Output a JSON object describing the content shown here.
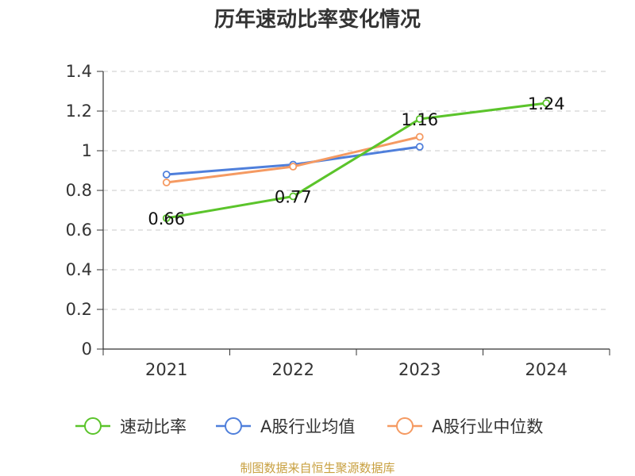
{
  "chart_data": {
    "type": "line",
    "title": "历年速动比率变化情况",
    "source": "制图数据来自恒生聚源数据库",
    "xlabel": "",
    "ylabel": "",
    "categories": [
      "2021",
      "2022",
      "2023",
      "2024"
    ],
    "yticks": [
      "0",
      "0.2",
      "0.4",
      "0.6",
      "0.8",
      "1",
      "1.2",
      "1.4"
    ],
    "ylim": [
      0,
      1.4
    ],
    "grid": true,
    "legend_position": "bottom",
    "series": [
      {
        "name": "速动比率",
        "color": "#5bc42b",
        "values": [
          0.66,
          0.77,
          1.16,
          1.24
        ],
        "labels": [
          "0.66",
          "0.77",
          "1.16",
          "1.24"
        ]
      },
      {
        "name": "A股行业均值",
        "color": "#4f7fdb",
        "values": [
          0.88,
          0.93,
          1.02,
          null
        ],
        "labels": []
      },
      {
        "name": "A股行业中位数",
        "color": "#f59a62",
        "values": [
          0.84,
          0.92,
          1.07,
          null
        ],
        "labels": []
      }
    ]
  }
}
